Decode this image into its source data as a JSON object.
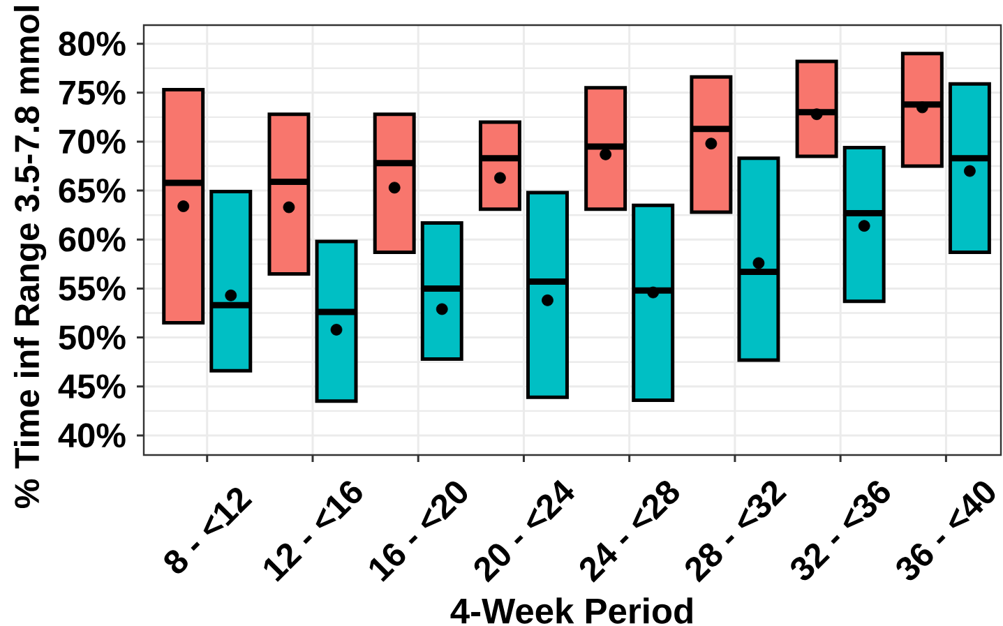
{
  "chart_data": {
    "type": "box",
    "xlabel": "4-Week Period",
    "ylabel": "% Time inf Range 3.5-7.8 mmol",
    "categories": [
      "8 - <12",
      "12 - <16",
      "16 - <20",
      "20 - <24",
      "24 - <28",
      "28 - <32",
      "32 - <36",
      "36 - <40"
    ],
    "ylim": [
      38,
      81.9
    ],
    "yticks": [
      {
        "value": 40,
        "label": "40%"
      },
      {
        "value": 45,
        "label": "45%"
      },
      {
        "value": 50,
        "label": "50%"
      },
      {
        "value": 55,
        "label": "55%"
      },
      {
        "value": 60,
        "label": "60%"
      },
      {
        "value": 65,
        "label": "65%"
      },
      {
        "value": 70,
        "label": "70%"
      },
      {
        "value": 75,
        "label": "75%"
      },
      {
        "value": 80,
        "label": "80%"
      }
    ],
    "grid": true,
    "series": [
      {
        "color": "#f8766d",
        "boxes": [
          {
            "low": 51.5,
            "q1": 51.5,
            "median": 65.8,
            "q3": 75.3,
            "high": 75.3,
            "mean": 63.4
          },
          {
            "low": 56.5,
            "q1": 56.5,
            "median": 65.9,
            "q3": 72.8,
            "high": 72.8,
            "mean": 63.3
          },
          {
            "low": 58.7,
            "q1": 58.7,
            "median": 67.8,
            "q3": 72.8,
            "high": 72.8,
            "mean": 65.3
          },
          {
            "low": 63.1,
            "q1": 63.1,
            "median": 68.3,
            "q3": 72.0,
            "high": 72.0,
            "mean": 66.3
          },
          {
            "low": 63.1,
            "q1": 63.1,
            "median": 69.5,
            "q3": 75.5,
            "high": 75.5,
            "mean": 68.7
          },
          {
            "low": 62.8,
            "q1": 62.8,
            "median": 71.3,
            "q3": 76.6,
            "high": 76.6,
            "mean": 69.8
          },
          {
            "low": 68.5,
            "q1": 68.5,
            "median": 73.0,
            "q3": 78.2,
            "high": 78.2,
            "mean": 72.8
          },
          {
            "low": 67.5,
            "q1": 67.5,
            "median": 73.8,
            "q3": 79.0,
            "high": 79.0,
            "mean": 73.5
          }
        ]
      },
      {
        "color": "#00bfc4",
        "boxes": [
          {
            "low": 46.6,
            "q1": 46.6,
            "median": 53.3,
            "q3": 64.9,
            "high": 64.9,
            "mean": 54.3
          },
          {
            "low": 43.5,
            "q1": 43.5,
            "median": 52.6,
            "q3": 59.8,
            "high": 59.8,
            "mean": 50.8
          },
          {
            "low": 47.8,
            "q1": 47.8,
            "median": 55.0,
            "q3": 61.7,
            "high": 61.7,
            "mean": 52.9
          },
          {
            "low": 43.9,
            "q1": 43.9,
            "median": 55.7,
            "q3": 64.8,
            "high": 64.8,
            "mean": 53.8
          },
          {
            "low": 43.6,
            "q1": 43.6,
            "median": 54.8,
            "q3": 63.5,
            "high": 63.5,
            "mean": 54.6
          },
          {
            "low": 47.7,
            "q1": 47.7,
            "median": 56.7,
            "q3": 68.3,
            "high": 68.3,
            "mean": 57.6
          },
          {
            "low": 53.7,
            "q1": 53.7,
            "median": 62.7,
            "q3": 69.4,
            "high": 69.4,
            "mean": 61.4
          },
          {
            "low": 58.7,
            "q1": 58.7,
            "median": 68.3,
            "q3": 75.9,
            "high": 75.9,
            "mean": 67.0
          }
        ]
      }
    ]
  }
}
